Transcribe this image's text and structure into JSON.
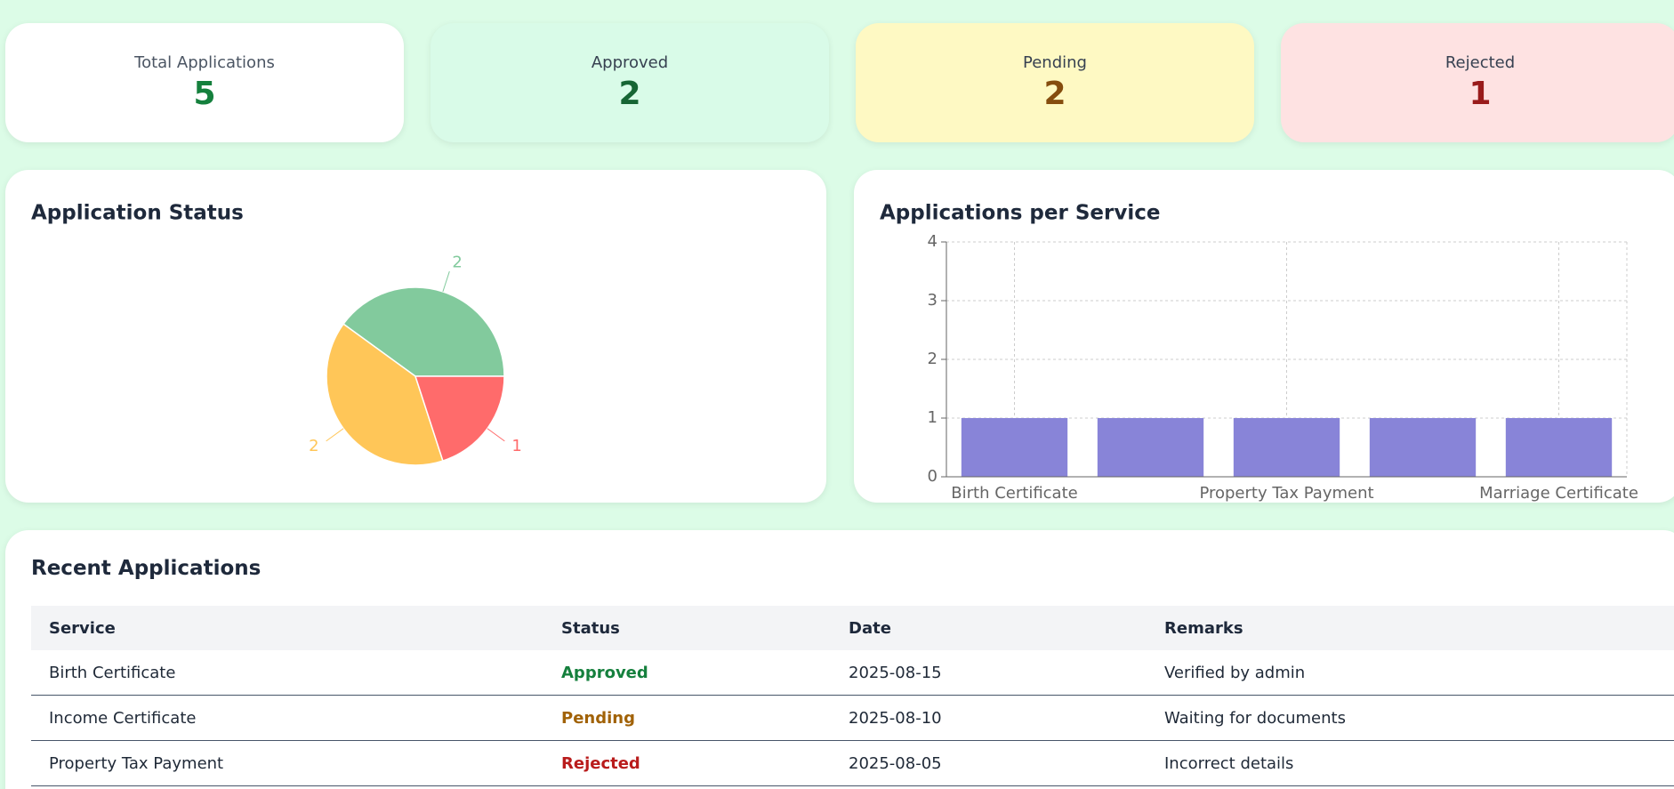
{
  "stats": [
    {
      "label": "Total Applications",
      "value": 5
    },
    {
      "label": "Approved",
      "value": 2
    },
    {
      "label": "Pending",
      "value": 2
    },
    {
      "label": "Rejected",
      "value": 1
    }
  ],
  "chart_data": [
    {
      "type": "pie",
      "title": "Application Status",
      "values": [
        2,
        2,
        1
      ],
      "colors": [
        "#82ca9d",
        "#ffc658",
        "#ff6b6b"
      ]
    },
    {
      "type": "bar",
      "title": "Applications per Service",
      "categories": [
        "Birth Certificate",
        null,
        "Property Tax Payment",
        null,
        "Marriage Certificate"
      ],
      "values": [
        1,
        1,
        1,
        1,
        1
      ],
      "color": "#8884d8",
      "ylim": [
        0,
        4
      ],
      "yticks": [
        0,
        1,
        2,
        3,
        4
      ],
      "grid": true
    }
  ],
  "table": {
    "title": "Recent Applications",
    "columns": [
      "Service",
      "Status",
      "Date",
      "Remarks"
    ],
    "rows": [
      [
        "Birth Certificate",
        "Approved",
        "2025-08-15",
        "Verified by admin"
      ],
      [
        "Income Certificate",
        "Pending",
        "2025-08-10",
        "Waiting for documents"
      ],
      [
        "Property Tax Payment",
        "Rejected",
        "2025-08-05",
        "Incorrect details"
      ]
    ]
  }
}
